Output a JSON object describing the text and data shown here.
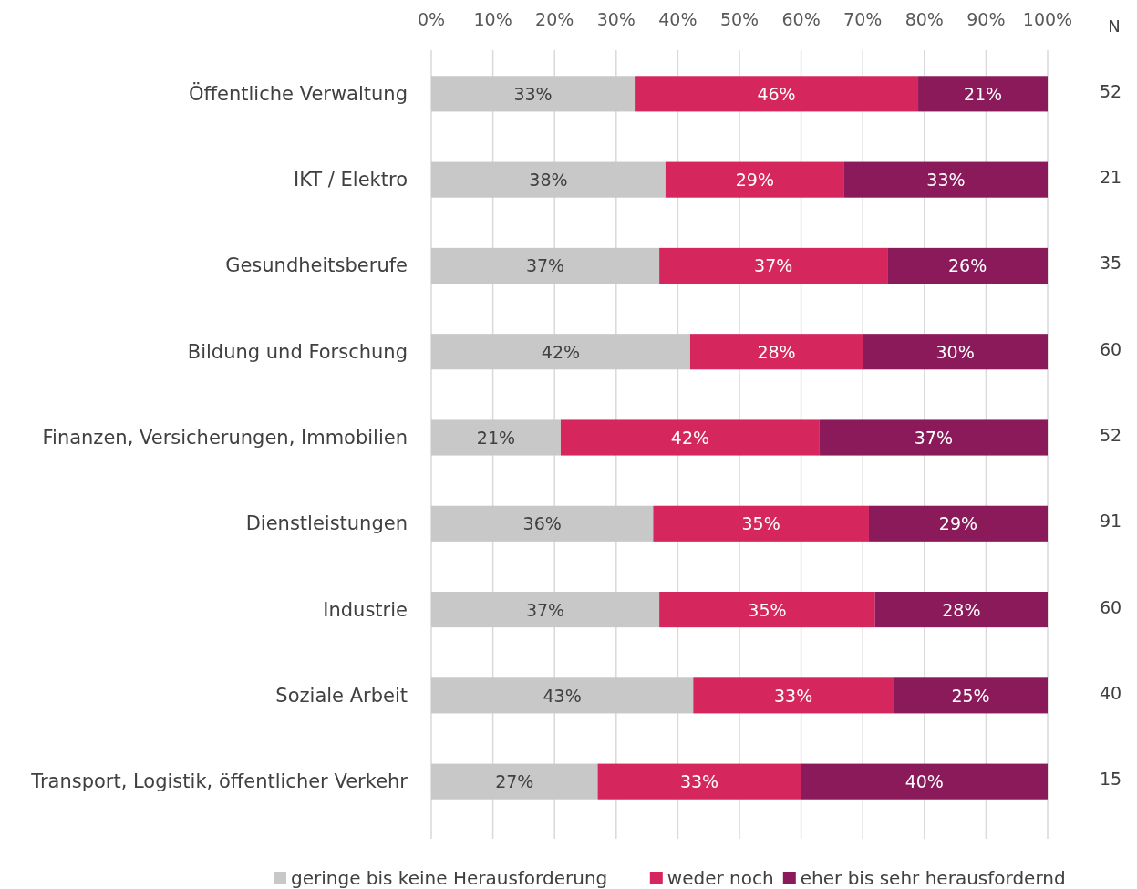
{
  "chart_data": {
    "type": "bar",
    "orientation": "horizontal",
    "stacked": true,
    "categories": [
      "Öffentliche Verwaltung",
      "IKT / Elektro",
      "Gesundheitsberufe",
      "Bildung und Forschung",
      "Finanzen, Versicherungen, Immobilien",
      "Dienstleistungen",
      "Industrie",
      "Soziale Arbeit",
      "Transport, Logistik, öffentlicher Verkehr"
    ],
    "series": [
      {
        "name": "geringe bis keine Herausforderung",
        "color": "#c8c8c8",
        "values": [
          33,
          38,
          37,
          42,
          21,
          36,
          37,
          42.5,
          27
        ],
        "value_labels": [
          "33%",
          "38%",
          "37%",
          "42%",
          "21%",
          "36%",
          "37%",
          "43%",
          "27%"
        ]
      },
      {
        "name": "weder noch",
        "color": "#d6265e",
        "values": [
          46,
          29,
          37,
          28,
          42,
          35,
          35,
          32.5,
          33
        ],
        "value_labels": [
          "46%",
          "29%",
          "37%",
          "28%",
          "42%",
          "35%",
          "35%",
          "33%",
          "33%"
        ]
      },
      {
        "name": "eher bis sehr herausfordernd",
        "color": "#8b1a5a",
        "values": [
          21,
          33,
          26,
          30,
          37,
          29,
          28,
          25,
          40
        ],
        "value_labels": [
          "21%",
          "33%",
          "26%",
          "30%",
          "37%",
          "29%",
          "28%",
          "25%",
          "40%"
        ]
      }
    ],
    "xlim": [
      0,
      100
    ],
    "xticks": [
      {
        "value": 0,
        "label": "0%"
      },
      {
        "value": 10,
        "label": "10%"
      },
      {
        "value": 20,
        "label": "20%"
      },
      {
        "value": 30,
        "label": "30%"
      },
      {
        "value": 40,
        "label": "40%"
      },
      {
        "value": 50,
        "label": "50%"
      },
      {
        "value": 60,
        "label": "60%"
      },
      {
        "value": 70,
        "label": "70%"
      },
      {
        "value": 80,
        "label": "80%"
      },
      {
        "value": 90,
        "label": "90%"
      },
      {
        "value": 100,
        "label": "100%"
      }
    ],
    "grid": "x",
    "legend": "bottom",
    "annotations": [
      "N",
      "52",
      "21",
      "35",
      "60",
      "52",
      "91",
      "60",
      "40",
      "15"
    ]
  }
}
